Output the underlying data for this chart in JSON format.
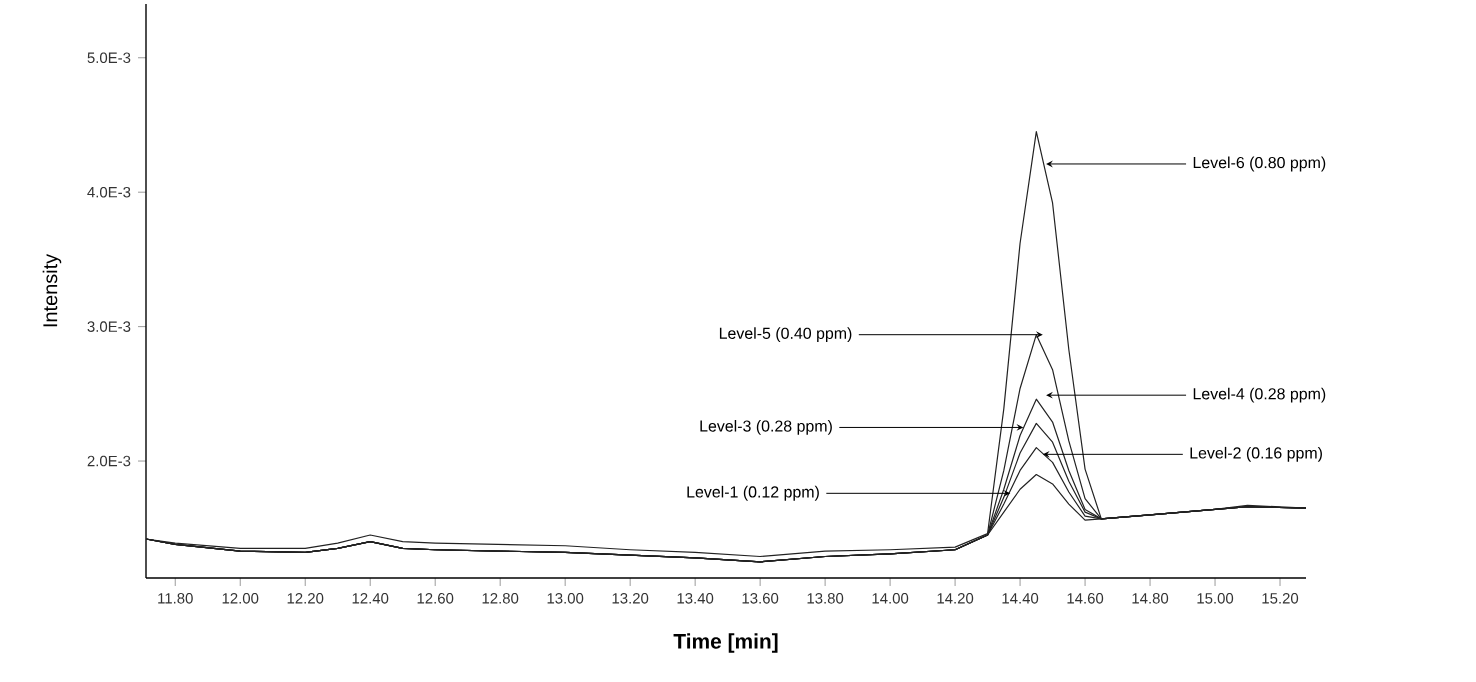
{
  "chart_data": {
    "type": "line",
    "xlabel": "Time [min]",
    "ylabel": "Intensity",
    "x": [
      11.71,
      11.8,
      12.0,
      12.2,
      12.3,
      12.4,
      12.5,
      12.6,
      12.8,
      13.0,
      13.2,
      13.4,
      13.6,
      13.8,
      14.0,
      14.2,
      14.3,
      14.35,
      14.4,
      14.45,
      14.5,
      14.55,
      14.6,
      14.65,
      14.8,
      15.0,
      15.1,
      15.28
    ],
    "series": [
      {
        "color": "#222222",
        "values": [
          0.00142,
          0.00139,
          0.00135,
          0.00135,
          0.00139,
          0.00145,
          0.0014,
          0.00139,
          0.00138,
          0.00137,
          0.00134,
          0.00132,
          0.00129,
          0.00133,
          0.00134,
          0.00136,
          0.00146,
          0.00239,
          0.00362,
          0.00445,
          0.00392,
          0.00283,
          0.00194,
          0.00157,
          0.0016,
          0.00164,
          0.00167,
          0.00165
        ]
      },
      {
        "color": "#222222",
        "values": [
          0.00142,
          0.00138,
          0.00133,
          0.00132,
          0.00135,
          0.0014,
          0.00135,
          0.00134,
          0.00133,
          0.00132,
          0.0013,
          0.00128,
          0.00125,
          0.00129,
          0.00131,
          0.00134,
          0.00145,
          0.00193,
          0.00254,
          0.00294,
          0.00268,
          0.00215,
          0.00172,
          0.00157,
          0.0016,
          0.00164,
          0.00166,
          0.00165
        ]
      },
      {
        "color": "#222222",
        "values": [
          0.00142,
          0.00138,
          0.00133,
          0.00132,
          0.00135,
          0.0014,
          0.00135,
          0.00134,
          0.00133,
          0.00132,
          0.0013,
          0.00128,
          0.00125,
          0.00129,
          0.00131,
          0.00134,
          0.00145,
          0.00179,
          0.00219,
          0.00246,
          0.00229,
          0.00193,
          0.00164,
          0.00157,
          0.0016,
          0.00164,
          0.00166,
          0.00165
        ]
      },
      {
        "color": "#222222",
        "values": [
          0.00142,
          0.00138,
          0.00133,
          0.00132,
          0.00135,
          0.0014,
          0.00135,
          0.00134,
          0.00133,
          0.00132,
          0.0013,
          0.00128,
          0.00125,
          0.00129,
          0.00131,
          0.00134,
          0.00145,
          0.00173,
          0.00206,
          0.00228,
          0.00214,
          0.00185,
          0.00162,
          0.00157,
          0.0016,
          0.00164,
          0.00166,
          0.00165
        ]
      },
      {
        "color": "#222222",
        "values": [
          0.00142,
          0.00138,
          0.00133,
          0.00132,
          0.00135,
          0.0014,
          0.00135,
          0.00134,
          0.00133,
          0.00132,
          0.0013,
          0.00128,
          0.00125,
          0.00129,
          0.00131,
          0.00134,
          0.00145,
          0.00168,
          0.00193,
          0.0021,
          0.00199,
          0.00177,
          0.00159,
          0.00157,
          0.0016,
          0.00164,
          0.00166,
          0.00165
        ]
      },
      {
        "color": "#222222",
        "values": [
          0.00142,
          0.00138,
          0.00133,
          0.00132,
          0.00135,
          0.0014,
          0.00135,
          0.00134,
          0.00133,
          0.00132,
          0.0013,
          0.00128,
          0.00125,
          0.00129,
          0.00131,
          0.00134,
          0.00145,
          0.00162,
          0.00179,
          0.0019,
          0.00183,
          0.00168,
          0.00156,
          0.00157,
          0.0016,
          0.00164,
          0.00166,
          0.00165
        ]
      }
    ],
    "xlim": [
      11.71,
      15.28
    ],
    "ylim": [
      0.00113,
      0.0054
    ],
    "xticks": [
      {
        "value": 11.8,
        "label": "11.80"
      },
      {
        "value": 12.0,
        "label": "12.00"
      },
      {
        "value": 12.2,
        "label": "12.20"
      },
      {
        "value": 12.4,
        "label": "12.40"
      },
      {
        "value": 12.6,
        "label": "12.60"
      },
      {
        "value": 12.8,
        "label": "12.80"
      },
      {
        "value": 13.0,
        "label": "13.00"
      },
      {
        "value": 13.2,
        "label": "13.20"
      },
      {
        "value": 13.4,
        "label": "13.40"
      },
      {
        "value": 13.6,
        "label": "13.60"
      },
      {
        "value": 13.8,
        "label": "13.80"
      },
      {
        "value": 14.0,
        "label": "14.00"
      },
      {
        "value": 14.2,
        "label": "14.20"
      },
      {
        "value": 14.4,
        "label": "14.40"
      },
      {
        "value": 14.6,
        "label": "14.60"
      },
      {
        "value": 14.8,
        "label": "14.80"
      },
      {
        "value": 15.0,
        "label": "15.00"
      },
      {
        "value": 15.2,
        "label": "15.20"
      }
    ],
    "yticks": [
      {
        "value": 0.002,
        "label": "2.0E-3"
      },
      {
        "value": 0.003,
        "label": "3.0E-3"
      },
      {
        "value": 0.004,
        "label": "4.0E-3"
      },
      {
        "value": 0.005,
        "label": "5.0E-3"
      }
    ],
    "grid": false,
    "marker": "none",
    "line_style": "solid",
    "annotations": [
      {
        "text": "Level-6 (0.80 ppm)",
        "x": 14.48,
        "y": 0.00421
      },
      {
        "text": "Level-5 (0.40 ppm)",
        "x": 14.47,
        "y": 0.00294
      },
      {
        "text": "Level-4 (0.28 ppm)",
        "x": 14.48,
        "y": 0.00249
      },
      {
        "text": "Level-3 (0.28 ppm)",
        "x": 14.41,
        "y": 0.00225
      },
      {
        "text": "Level-2 (0.16 ppm)",
        "x": 14.47,
        "y": 0.00205
      },
      {
        "text": "Level-1 (0.12 ppm)",
        "x": 14.37,
        "y": 0.00176
      }
    ]
  }
}
